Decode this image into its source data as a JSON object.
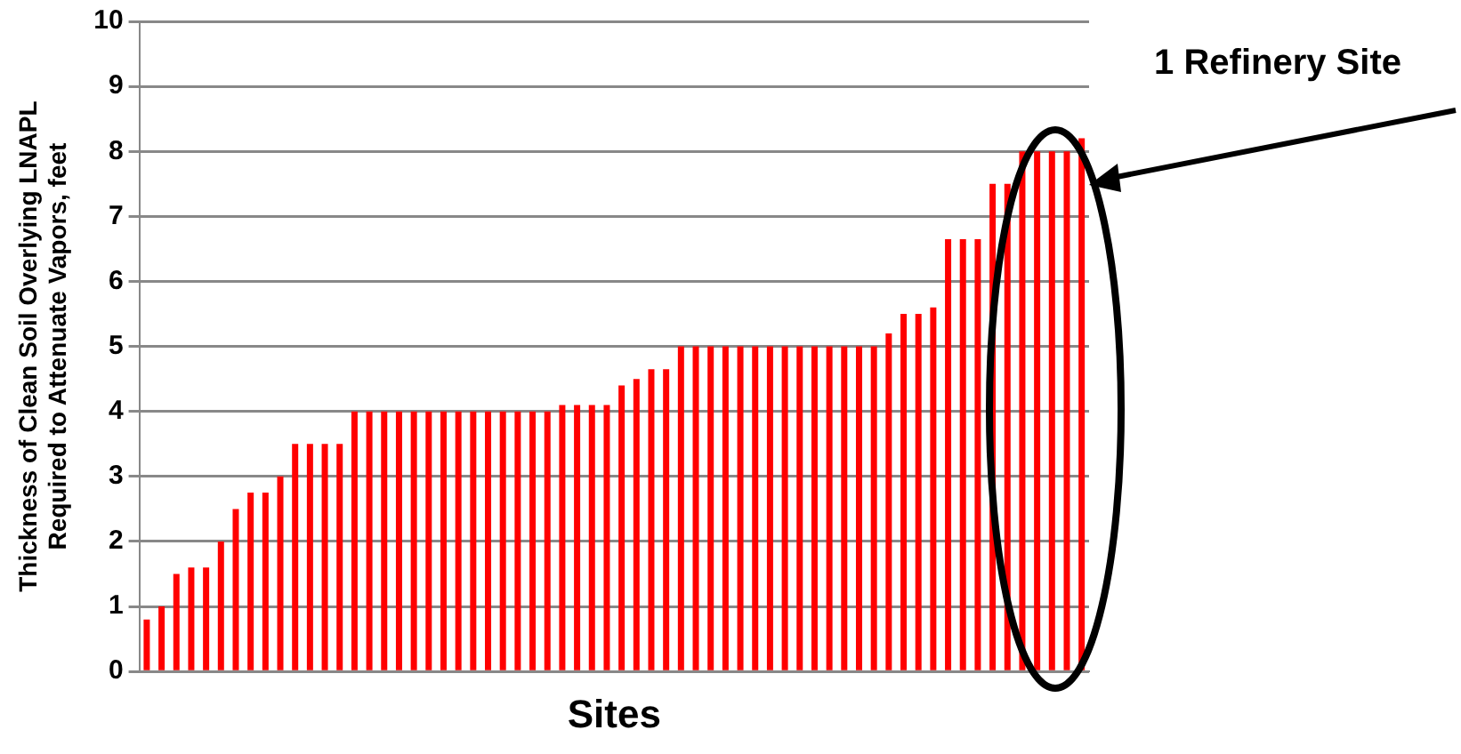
{
  "chart_data": {
    "type": "bar",
    "xlabel": "Sites",
    "ylabel": "Thickness of Clean Soil Overlying LNAPL\nRequired to Attenuate Vapors, feet",
    "categories": [
      null,
      null,
      null,
      null,
      null,
      null,
      null,
      null,
      null,
      null,
      null,
      null,
      null,
      null,
      null,
      null,
      null,
      null,
      null,
      null,
      null,
      null,
      null,
      null,
      null,
      null,
      null,
      null,
      null,
      null,
      null,
      null,
      null,
      null,
      null,
      null,
      null,
      null,
      null,
      null,
      null,
      null,
      null,
      null,
      null,
      null,
      null,
      null,
      null,
      null,
      null,
      null,
      null,
      null,
      null,
      null,
      null,
      null,
      null,
      null,
      null,
      null,
      null,
      null
    ],
    "values": [
      0.8,
      1.0,
      1.5,
      1.6,
      1.6,
      2.0,
      2.5,
      2.75,
      2.75,
      3.0,
      3.5,
      3.5,
      3.5,
      3.5,
      4.0,
      4.0,
      4.0,
      4.0,
      4.0,
      4.0,
      4.0,
      4.0,
      4.0,
      4.0,
      4.0,
      4.0,
      4.0,
      4.0,
      4.1,
      4.1,
      4.1,
      4.1,
      4.4,
      4.5,
      4.65,
      4.65,
      5.0,
      5.0,
      5.0,
      5.0,
      5.0,
      5.0,
      5.0,
      5.0,
      5.0,
      5.0,
      5.0,
      5.0,
      5.0,
      5.0,
      5.2,
      5.5,
      5.5,
      5.6,
      6.65,
      6.65,
      6.65,
      7.5,
      7.5,
      8.0,
      8.0,
      8.0,
      8.0,
      8.2
    ],
    "color": "#ff0000",
    "ylim": [
      0,
      10
    ],
    "yticks": [
      0,
      1,
      2,
      3,
      4,
      5,
      6,
      7,
      8,
      9,
      10
    ],
    "grid": "y",
    "annotations": [
      "1 Refinery Site"
    ]
  }
}
